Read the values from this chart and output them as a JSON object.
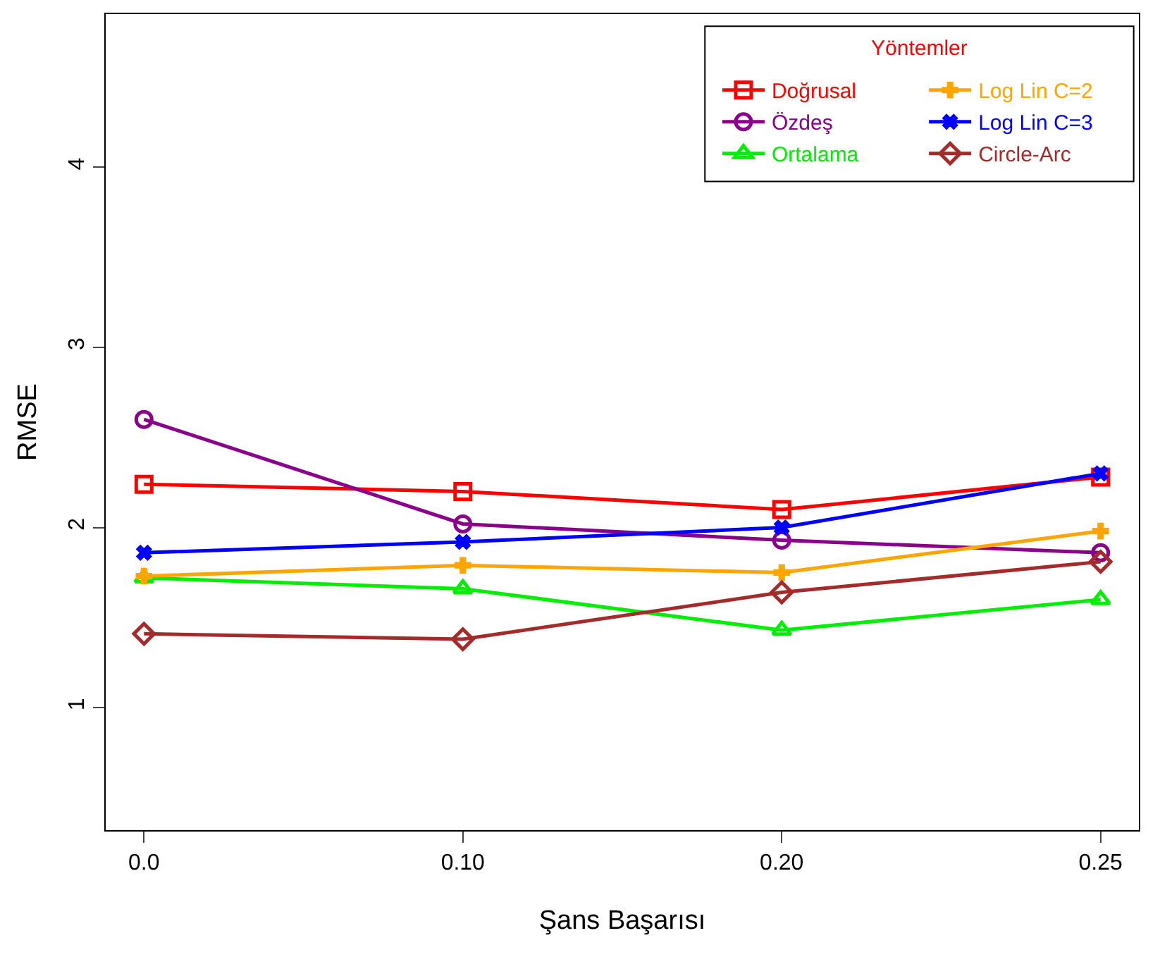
{
  "chart_data": {
    "type": "line",
    "xlabel": "Şans Başarısı",
    "ylabel": "RMSE",
    "legend_title": "Yöntemler",
    "legend": "top right",
    "grid": false,
    "line_style": "solid",
    "categories": [
      "0.0",
      "0.10",
      "0.20",
      "0.25"
    ],
    "ylim": [
      0.32,
      4.85
    ],
    "yticks": [
      1,
      2,
      3,
      4
    ],
    "series": [
      {
        "name": "Doğrusal",
        "color": "#ff0000",
        "marker": "square",
        "values": [
          2.24,
          2.2,
          2.1,
          2.28
        ]
      },
      {
        "name": "Özdeş",
        "color": "#8b008b",
        "marker": "circle",
        "values": [
          2.6,
          2.02,
          1.93,
          1.86
        ]
      },
      {
        "name": "Ortalama",
        "color": "#00ee00",
        "marker": "triangle",
        "values": [
          1.72,
          1.66,
          1.43,
          1.6
        ]
      },
      {
        "name": "Log Lin C=2",
        "color": "#ffa500",
        "marker": "cross",
        "values": [
          1.73,
          1.79,
          1.75,
          1.98
        ]
      },
      {
        "name": "Log Lin C=3",
        "color": "#0000ff",
        "marker": "x",
        "values": [
          1.86,
          1.92,
          2.0,
          2.3
        ]
      },
      {
        "name": "Circle-Arc",
        "color": "#a52a2a",
        "marker": "diamond",
        "values": [
          1.41,
          1.38,
          1.64,
          1.81
        ]
      }
    ]
  }
}
